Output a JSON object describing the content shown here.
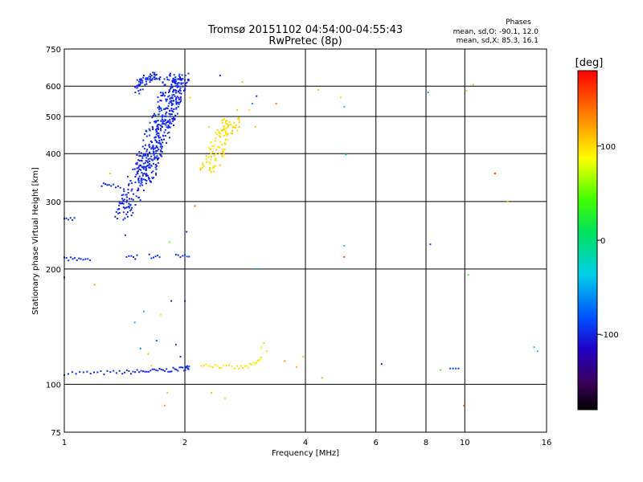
{
  "chart_data": {
    "type": "scatter",
    "title": "Tromsø 20151102 04:54:00-04:55:43",
    "subtitle": "RwPretec (8p)",
    "xlabel": "Frequency [MHz]",
    "ylabel": "Stationary phase Virtual Height [km]",
    "x_scale": "log",
    "y_scale": "log",
    "xlim": [
      1,
      16
    ],
    "ylim": [
      75,
      750
    ],
    "x_ticks": [
      1,
      2,
      4,
      6,
      8,
      10,
      16
    ],
    "x_tick_labels": [
      "1",
      "2",
      "4",
      "6",
      "8",
      "10",
      "16"
    ],
    "y_ticks": [
      75,
      100,
      200,
      300,
      400,
      500,
      600,
      750
    ],
    "y_tick_labels": [
      "75",
      "100",
      "200",
      "300",
      "400",
      "500",
      "600",
      "750"
    ],
    "grid": true,
    "info": {
      "heading": "Phases",
      "line1": "mean, sd,O: -90.1, 12.0",
      "line2": "mean, sd,X: 85.3, 16.1"
    },
    "colorbar": {
      "label": "[deg]",
      "range": [
        -180,
        180
      ],
      "ticks": [
        100,
        0,
        -100
      ],
      "tick_labels": [
        "100",
        "0",
        "-100"
      ]
    },
    "traces": [
      {
        "kind": "curve",
        "phase": -100,
        "points": [
          [
            1.0,
            107
          ],
          [
            1.2,
            107
          ],
          [
            1.4,
            107.5
          ],
          [
            1.55,
            108
          ],
          [
            1.7,
            108.5
          ],
          [
            1.85,
            109
          ],
          [
            2.0,
            110
          ],
          [
            2.05,
            111
          ]
        ]
      },
      {
        "kind": "curve",
        "phase": 95,
        "points": [
          [
            2.2,
            113
          ],
          [
            2.35,
            112
          ],
          [
            2.5,
            111
          ],
          [
            2.7,
            110.5
          ],
          [
            2.85,
            111
          ],
          [
            3.0,
            113
          ],
          [
            3.1,
            117
          ]
        ]
      },
      {
        "kind": "band",
        "phase": -100,
        "points": [
          [
            1.4,
            275
          ],
          [
            1.45,
            300
          ],
          [
            1.5,
            330
          ],
          [
            1.55,
            360
          ],
          [
            1.6,
            390
          ],
          [
            1.65,
            420
          ],
          [
            1.72,
            470
          ],
          [
            1.78,
            520
          ],
          [
            1.85,
            580
          ],
          [
            1.9,
            640
          ]
        ],
        "spread": 0.06
      },
      {
        "kind": "band",
        "phase": -100,
        "points": [
          [
            1.58,
            330
          ],
          [
            1.65,
            370
          ],
          [
            1.72,
            420
          ],
          [
            1.8,
            480
          ],
          [
            1.86,
            540
          ],
          [
            1.92,
            600
          ],
          [
            1.98,
            640
          ]
        ],
        "spread": 0.05
      },
      {
        "kind": "band",
        "phase": -100,
        "points": [
          [
            1.5,
            580
          ],
          [
            1.55,
            610
          ],
          [
            1.6,
            630
          ],
          [
            1.65,
            640
          ],
          [
            1.7,
            625
          ]
        ],
        "spread": 0.03
      },
      {
        "kind": "band",
        "phase": 100,
        "points": [
          [
            2.28,
            360
          ],
          [
            2.35,
            385
          ],
          [
            2.42,
            410
          ],
          [
            2.5,
            440
          ],
          [
            2.58,
            470
          ],
          [
            2.62,
            490
          ]
        ],
        "spread": 0.05
      },
      {
        "kind": "segment",
        "phase": -100,
        "points": [
          [
            1.0,
            213
          ],
          [
            1.05,
            212
          ],
          [
            1.1,
            212
          ],
          [
            1.16,
            212
          ]
        ]
      },
      {
        "kind": "segment",
        "phase": -100,
        "points": [
          [
            1.0,
            272
          ],
          [
            1.03,
            270
          ],
          [
            1.06,
            270
          ]
        ]
      },
      {
        "kind": "segment",
        "phase": -100,
        "points": [
          [
            1.24,
            330
          ],
          [
            1.3,
            332
          ],
          [
            1.38,
            328
          ]
        ]
      },
      {
        "kind": "segment",
        "phase": -95,
        "points": [
          [
            1.9,
            216
          ],
          [
            1.95,
            217
          ],
          [
            2.0,
            218
          ],
          [
            2.05,
            217
          ]
        ]
      },
      {
        "kind": "segment",
        "phase": -100,
        "points": [
          [
            1.43,
            215
          ],
          [
            1.48,
            214
          ],
          [
            1.52,
            215
          ]
        ]
      },
      {
        "kind": "segment",
        "phase": -95,
        "points": [
          [
            1.63,
            216
          ],
          [
            1.68,
            215
          ],
          [
            1.73,
            215
          ]
        ]
      }
    ],
    "points": [
      {
        "x": 1.0,
        "y": 190,
        "phase": -100
      },
      {
        "x": 1.19,
        "y": 182,
        "phase": 120
      },
      {
        "x": 1.3,
        "y": 355,
        "phase": 110
      },
      {
        "x": 1.42,
        "y": 245,
        "phase": -100
      },
      {
        "x": 1.45,
        "y": 290,
        "phase": -100
      },
      {
        "x": 1.5,
        "y": 145,
        "phase": -50
      },
      {
        "x": 1.55,
        "y": 124,
        "phase": -60
      },
      {
        "x": 1.58,
        "y": 155,
        "phase": -40
      },
      {
        "x": 1.62,
        "y": 120,
        "phase": 110
      },
      {
        "x": 1.65,
        "y": 112,
        "phase": 105
      },
      {
        "x": 1.7,
        "y": 130,
        "phase": -80
      },
      {
        "x": 1.74,
        "y": 152,
        "phase": 95
      },
      {
        "x": 1.78,
        "y": 88,
        "phase": 120
      },
      {
        "x": 1.81,
        "y": 95,
        "phase": 105
      },
      {
        "x": 1.83,
        "y": 235,
        "phase": 50
      },
      {
        "x": 1.85,
        "y": 165,
        "phase": -100
      },
      {
        "x": 1.9,
        "y": 127,
        "phase": -90
      },
      {
        "x": 1.95,
        "y": 118,
        "phase": -100
      },
      {
        "x": 2.0,
        "y": 165,
        "phase": -100
      },
      {
        "x": 2.02,
        "y": 250,
        "phase": -100
      },
      {
        "x": 2.04,
        "y": 620,
        "phase": -100
      },
      {
        "x": 2.06,
        "y": 560,
        "phase": 100
      },
      {
        "x": 2.12,
        "y": 292,
        "phase": 150
      },
      {
        "x": 2.3,
        "y": 470,
        "phase": 100
      },
      {
        "x": 2.33,
        "y": 95,
        "phase": 110
      },
      {
        "x": 2.45,
        "y": 640,
        "phase": -100
      },
      {
        "x": 2.52,
        "y": 92,
        "phase": 100
      },
      {
        "x": 2.7,
        "y": 520,
        "phase": 60
      },
      {
        "x": 2.78,
        "y": 615,
        "phase": 110
      },
      {
        "x": 2.9,
        "y": 520,
        "phase": 100
      },
      {
        "x": 2.95,
        "y": 540,
        "phase": -60
      },
      {
        "x": 3.0,
        "y": 470,
        "phase": 110
      },
      {
        "x": 3.02,
        "y": 565,
        "phase": -100
      },
      {
        "x": 3.03,
        "y": 200,
        "phase": -50
      },
      {
        "x": 3.1,
        "y": 125,
        "phase": 75
      },
      {
        "x": 3.15,
        "y": 128,
        "phase": 60
      },
      {
        "x": 3.2,
        "y": 122,
        "phase": 100
      },
      {
        "x": 3.38,
        "y": 540,
        "phase": 140
      },
      {
        "x": 3.55,
        "y": 115,
        "phase": 120
      },
      {
        "x": 3.8,
        "y": 111,
        "phase": 115
      },
      {
        "x": 3.95,
        "y": 118,
        "phase": 110
      },
      {
        "x": 4.3,
        "y": 587,
        "phase": 110
      },
      {
        "x": 4.4,
        "y": 104,
        "phase": 115
      },
      {
        "x": 4.9,
        "y": 560,
        "phase": 100
      },
      {
        "x": 5.0,
        "y": 530,
        "phase": -40
      },
      {
        "x": 5.0,
        "y": 230,
        "phase": -30
      },
      {
        "x": 5.0,
        "y": 215,
        "phase": 160
      },
      {
        "x": 5.05,
        "y": 398,
        "phase": -40
      },
      {
        "x": 6.2,
        "y": 113,
        "phase": -100
      },
      {
        "x": 8.1,
        "y": 578,
        "phase": -50
      },
      {
        "x": 8.2,
        "y": 232,
        "phase": -80
      },
      {
        "x": 8.7,
        "y": 109,
        "phase": 40
      },
      {
        "x": 9.2,
        "y": 110,
        "phase": -90
      },
      {
        "x": 9.35,
        "y": 110,
        "phase": -90
      },
      {
        "x": 9.5,
        "y": 110,
        "phase": -90
      },
      {
        "x": 9.65,
        "y": 110,
        "phase": -90
      },
      {
        "x": 9.95,
        "y": 88,
        "phase": 150
      },
      {
        "x": 10.1,
        "y": 583,
        "phase": 110
      },
      {
        "x": 10.2,
        "y": 193,
        "phase": 40
      },
      {
        "x": 10.5,
        "y": 605,
        "phase": 110
      },
      {
        "x": 11.9,
        "y": 355,
        "phase": 170
      },
      {
        "x": 12.8,
        "y": 300,
        "phase": 110
      },
      {
        "x": 14.9,
        "y": 125,
        "phase": -40
      },
      {
        "x": 15.2,
        "y": 122,
        "phase": -20
      }
    ]
  }
}
